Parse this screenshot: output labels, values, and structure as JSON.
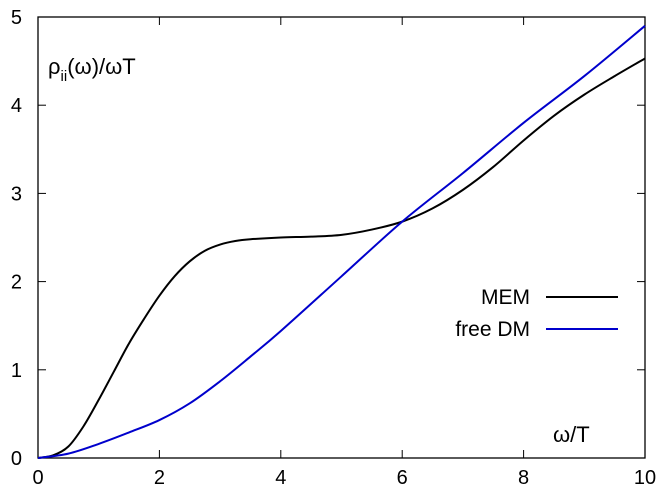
{
  "chart_data": {
    "type": "line",
    "title": "",
    "xlabel": "ω/T",
    "ylabel": {
      "prefix": "ρ",
      "sub": "ii",
      "suffix": "(ω)/ωT"
    },
    "xlim": [
      0,
      10
    ],
    "ylim": [
      0,
      5
    ],
    "xticks": [
      "0",
      "2",
      "4",
      "6",
      "8",
      "10"
    ],
    "yticks": [
      "0",
      "1",
      "2",
      "3",
      "4",
      "5"
    ],
    "grid": false,
    "legend_position": "right",
    "series": [
      {
        "name": "MEM",
        "color": "#000000",
        "x": [
          0,
          0.25,
          0.5,
          0.75,
          1.0,
          1.25,
          1.5,
          1.75,
          2.0,
          2.25,
          2.5,
          2.75,
          3.0,
          3.25,
          3.5,
          4.0,
          4.5,
          5.0,
          5.5,
          6.0,
          6.5,
          7.0,
          7.5,
          8.0,
          8.5,
          9.0,
          9.5,
          10.0
        ],
        "y": [
          0,
          0.03,
          0.13,
          0.36,
          0.66,
          0.98,
          1.3,
          1.58,
          1.84,
          2.06,
          2.23,
          2.35,
          2.42,
          2.46,
          2.48,
          2.5,
          2.51,
          2.53,
          2.59,
          2.68,
          2.83,
          3.04,
          3.3,
          3.6,
          3.88,
          4.12,
          4.33,
          4.53
        ]
      },
      {
        "name": "free DM",
        "color": "#0000cc",
        "x": [
          0,
          0.5,
          1.0,
          1.5,
          2.0,
          2.5,
          3.0,
          3.5,
          4.0,
          5.0,
          6.0,
          7.0,
          8.0,
          9.0,
          10.0
        ],
        "y": [
          0,
          0.05,
          0.16,
          0.29,
          0.43,
          0.62,
          0.87,
          1.15,
          1.44,
          2.06,
          2.68,
          3.23,
          3.8,
          4.33,
          4.9
        ]
      }
    ]
  }
}
